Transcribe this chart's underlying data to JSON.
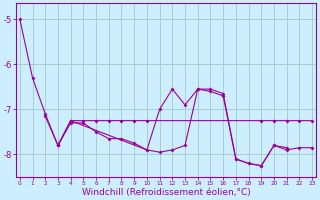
{
  "background_color": "#cceeff",
  "grid_color": "#aacccc",
  "line_color": "#990099",
  "xlabel": "Windchill (Refroidissement éolien,°C)",
  "xlabel_fontsize": 6.5,
  "ytick_labels": [
    "-5",
    "-6",
    "-7",
    "-8"
  ],
  "ytick_vals": [
    -5,
    -6,
    -7,
    -8
  ],
  "xtick_vals": [
    0,
    1,
    2,
    3,
    4,
    5,
    6,
    7,
    8,
    9,
    10,
    11,
    12,
    13,
    14,
    15,
    16,
    17,
    18,
    19,
    20,
    21,
    22,
    23
  ],
  "xlim": [
    -0.3,
    23.3
  ],
  "ylim": [
    -8.5,
    -4.65
  ],
  "series": [
    {
      "x": [
        0,
        1,
        2,
        3,
        4,
        5,
        6,
        7,
        8,
        9,
        10,
        11,
        12,
        13,
        14,
        15,
        16,
        17,
        18,
        19,
        20,
        21
      ],
      "y": [
        -5.0,
        -6.3,
        -7.1,
        -7.8,
        -7.3,
        -7.3,
        -7.5,
        -7.65,
        -7.65,
        -7.75,
        -7.9,
        -7.95,
        -7.9,
        -7.8,
        -6.55,
        -6.55,
        -6.65,
        -8.1,
        -8.2,
        -8.25,
        -7.8,
        -7.85
      ]
    },
    {
      "x": [
        2,
        3,
        4,
        5,
        6,
        7,
        8,
        9,
        10,
        19,
        20,
        21,
        22,
        23
      ],
      "y": [
        -7.15,
        -7.8,
        -7.25,
        -7.25,
        -7.25,
        -7.25,
        -7.25,
        -7.25,
        -7.25,
        -7.25,
        -7.25,
        -7.25,
        -7.25,
        -7.25
      ]
    },
    {
      "x": [
        3,
        4,
        10,
        11,
        12,
        13,
        14,
        15,
        16,
        17,
        18,
        19,
        20,
        21,
        22,
        23
      ],
      "y": [
        -7.8,
        -7.25,
        -7.9,
        -7.0,
        -6.55,
        -6.9,
        -6.55,
        -6.6,
        -6.7,
        -8.1,
        -8.2,
        -8.25,
        -7.8,
        -7.9,
        -7.85,
        -7.85
      ]
    }
  ]
}
